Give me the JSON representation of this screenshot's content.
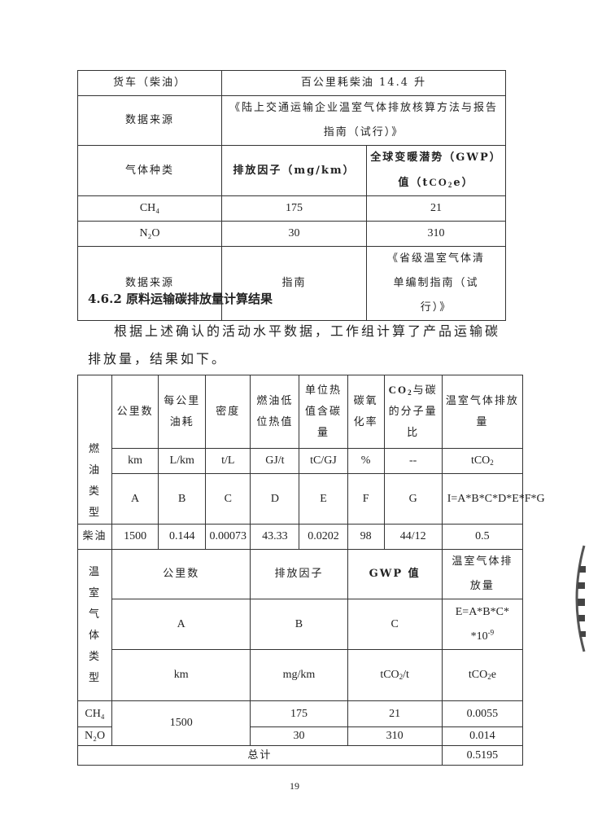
{
  "table1": {
    "rows": [
      {
        "label": "货车（柴油）",
        "value": "百公里耗柴油 14.4 升"
      },
      {
        "label": "数据来源",
        "value": "《陆上交通运输企业温室气体排放核算方法与报告指南（试行）》"
      }
    ],
    "header": {
      "gas": "气体种类",
      "factor": "排放因子（mg/km）",
      "gwp": "全球变暖潜势（GWP）值（tCO₂e）"
    },
    "gases": [
      {
        "gas": "CH₄",
        "factor": "175",
        "gwp": "21"
      },
      {
        "gas": "N₂O",
        "factor": "30",
        "gwp": "310"
      }
    ],
    "source": {
      "label": "数据来源",
      "factor": "指南",
      "gwp": "《省级温室气体清单编制指南（试行）》"
    }
  },
  "section_heading": "4.6.2 原料运输碳排放量计算结果",
  "paragraph": "根据上述确认的活动水平数据，工作组计算了产品运输碳排放量，结果如下。",
  "table2": {
    "fuel_type_label": "燃油类型",
    "headers": [
      "公里数",
      "每公里油耗",
      "密度",
      "燃油低位热值",
      "单位热值含碳量",
      "碳氧化率",
      "CO₂与碳的分子量比",
      "温室气体排放量"
    ],
    "units": [
      "km",
      "L/km",
      "t/L",
      "GJ/t",
      "tC/GJ",
      "%",
      "--",
      "tCO₂"
    ],
    "letters": [
      "A",
      "B",
      "C",
      "D",
      "E",
      "F",
      "G",
      "I=A*B*C*D*E*F*G"
    ],
    "diesel": {
      "label": "柴油",
      "values": [
        "1500",
        "0.144",
        "0.00073",
        "43.33",
        "0.0202",
        "98",
        "44/12",
        "0.5"
      ]
    },
    "ghg_type_label": "温室气体类型",
    "ghg_headers": [
      "公里数",
      "排放因子",
      "GWP 值",
      "温室气体排放量"
    ],
    "ghg_letters": [
      "A",
      "B",
      "C",
      "E=A*B*C**10-9"
    ],
    "ghg_units": [
      "km",
      "mg/km",
      "tCO₂/t",
      "tCO₂e"
    ],
    "km": "1500",
    "ghg_rows": [
      {
        "gas": "CH₄",
        "factor": "175",
        "gwp": "21",
        "emission": "0.0055"
      },
      {
        "gas": "N₂O",
        "factor": "30",
        "gwp": "310",
        "emission": "0.014"
      }
    ],
    "total_label": "总计",
    "total_value": "0.5195"
  },
  "page_number": "19"
}
